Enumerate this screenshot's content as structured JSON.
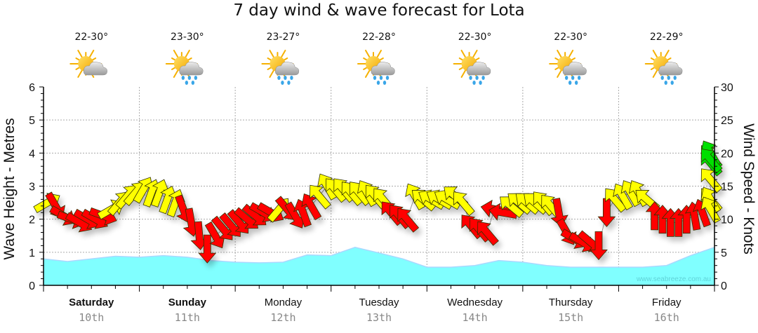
{
  "chart_data": {
    "type": "area",
    "title": "7 day wind & wave forecast for Lota",
    "ylabel_left": "Wave Height - Metres",
    "ylabel_right": "Wind Speed - Knots",
    "ylim_left": [
      0,
      6
    ],
    "ylim_right": [
      0,
      30
    ],
    "yticks_left": [
      "0",
      "1",
      "2",
      "3",
      "4",
      "5",
      "6"
    ],
    "yticks_right": [
      "0",
      "5",
      "10",
      "15",
      "20",
      "25",
      "30"
    ],
    "grid": true,
    "watermark": "www.seabreeze.com.au",
    "days": [
      {
        "name": "Saturday",
        "date": "10th",
        "temp": "22-30°",
        "icon": "partly-cloudy-icon",
        "bold": true
      },
      {
        "name": "Sunday",
        "date": "11th",
        "temp": "23-30°",
        "icon": "partly-cloudy-rain-icon",
        "bold": true
      },
      {
        "name": "Monday",
        "date": "12th",
        "temp": "23-27°",
        "icon": "partly-cloudy-rain-icon",
        "bold": false
      },
      {
        "name": "Tuesday",
        "date": "13th",
        "temp": "22-28°",
        "icon": "partly-cloudy-rain-icon",
        "bold": false
      },
      {
        "name": "Wednesday",
        "date": "14th",
        "temp": "22-30°",
        "icon": "partly-cloudy-rain-icon",
        "bold": false
      },
      {
        "name": "Thursday",
        "date": "15th",
        "temp": "22-30°",
        "icon": "partly-cloudy-rain-icon",
        "bold": false
      },
      {
        "name": "Friday",
        "date": "16th",
        "temp": "22-29°",
        "icon": "partly-cloudy-rain-icon",
        "bold": false
      }
    ],
    "wave_series": {
      "name": "Wave Height (m)",
      "color": "#80ffff",
      "hours": [
        0,
        6,
        12,
        18,
        24,
        30,
        36,
        42,
        48,
        54,
        60,
        66,
        72,
        78,
        84,
        90,
        96,
        102,
        108,
        114,
        120,
        126,
        132,
        138,
        144,
        150,
        156,
        162,
        168
      ],
      "values": [
        0.8,
        0.72,
        0.8,
        0.88,
        0.85,
        0.9,
        0.85,
        0.75,
        0.7,
        0.68,
        0.7,
        0.92,
        0.9,
        1.15,
        0.98,
        0.8,
        0.55,
        0.55,
        0.6,
        0.75,
        0.7,
        0.6,
        0.55,
        0.55,
        0.55,
        0.55,
        0.6,
        0.9,
        1.15
      ]
    },
    "wind_series": {
      "name": "Wind Speed (knots)",
      "color_scale": {
        "light": "#ffff00",
        "moderate": "#ff0000",
        "strong": "#00e000"
      },
      "points": [
        {
          "h": 1,
          "kt": 12.5,
          "dir": 240,
          "c": "light"
        },
        {
          "h": 3,
          "kt": 12.0,
          "dir": 330,
          "c": "moderate"
        },
        {
          "h": 5,
          "kt": 10.5,
          "dir": 300,
          "c": "moderate"
        },
        {
          "h": 7,
          "kt": 10.0,
          "dir": 290,
          "c": "moderate"
        },
        {
          "h": 9,
          "kt": 9.5,
          "dir": 300,
          "c": "moderate"
        },
        {
          "h": 11,
          "kt": 10.0,
          "dir": 300,
          "c": "moderate"
        },
        {
          "h": 13,
          "kt": 10.0,
          "dir": 300,
          "c": "moderate"
        },
        {
          "h": 15,
          "kt": 10.5,
          "dir": 290,
          "c": "moderate"
        },
        {
          "h": 17,
          "kt": 11.5,
          "dir": 240,
          "c": "light"
        },
        {
          "h": 19,
          "kt": 12.5,
          "dir": 220,
          "c": "light"
        },
        {
          "h": 21,
          "kt": 13.5,
          "dir": 220,
          "c": "light"
        },
        {
          "h": 23,
          "kt": 14.0,
          "dir": 220,
          "c": "light"
        },
        {
          "h": 25,
          "kt": 14.5,
          "dir": 210,
          "c": "light"
        },
        {
          "h": 27,
          "kt": 14.0,
          "dir": 200,
          "c": "light"
        },
        {
          "h": 29,
          "kt": 14.0,
          "dir": 200,
          "c": "light"
        },
        {
          "h": 31,
          "kt": 13.0,
          "dir": 200,
          "c": "light"
        },
        {
          "h": 33,
          "kt": 12.5,
          "dir": 200,
          "c": "light"
        },
        {
          "h": 35,
          "kt": 11.5,
          "dir": 340,
          "c": "moderate"
        },
        {
          "h": 37,
          "kt": 9.5,
          "dir": 350,
          "c": "moderate"
        },
        {
          "h": 39,
          "kt": 7.5,
          "dir": 355,
          "c": "moderate"
        },
        {
          "h": 41,
          "kt": 5.5,
          "dir": 360,
          "c": "moderate"
        },
        {
          "h": 43,
          "kt": 7.5,
          "dir": 330,
          "c": "moderate"
        },
        {
          "h": 45,
          "kt": 8.5,
          "dir": 320,
          "c": "moderate"
        },
        {
          "h": 47,
          "kt": 9.0,
          "dir": 320,
          "c": "moderate"
        },
        {
          "h": 49,
          "kt": 9.5,
          "dir": 320,
          "c": "moderate"
        },
        {
          "h": 51,
          "kt": 10.0,
          "dir": 310,
          "c": "moderate"
        },
        {
          "h": 53,
          "kt": 10.5,
          "dir": 310,
          "c": "moderate"
        },
        {
          "h": 55,
          "kt": 11.0,
          "dir": 300,
          "c": "moderate"
        },
        {
          "h": 57,
          "kt": 11.0,
          "dir": 300,
          "c": "moderate"
        },
        {
          "h": 59,
          "kt": 11.5,
          "dir": 220,
          "c": "light"
        },
        {
          "h": 61,
          "kt": 11.5,
          "dir": 320,
          "c": "moderate"
        },
        {
          "h": 63,
          "kt": 10.5,
          "dir": 330,
          "c": "moderate"
        },
        {
          "h": 65,
          "kt": 11.0,
          "dir": 160,
          "c": "moderate"
        },
        {
          "h": 67,
          "kt": 12.0,
          "dir": 150,
          "c": "moderate"
        },
        {
          "h": 69,
          "kt": 13.5,
          "dir": 140,
          "c": "light"
        },
        {
          "h": 71,
          "kt": 15.0,
          "dir": 150,
          "c": "light"
        },
        {
          "h": 73,
          "kt": 14.5,
          "dir": 140,
          "c": "light"
        },
        {
          "h": 75,
          "kt": 14.5,
          "dir": 140,
          "c": "light"
        },
        {
          "h": 77,
          "kt": 14.0,
          "dir": 140,
          "c": "light"
        },
        {
          "h": 79,
          "kt": 14.0,
          "dir": 140,
          "c": "light"
        },
        {
          "h": 81,
          "kt": 14.0,
          "dir": 150,
          "c": "light"
        },
        {
          "h": 83,
          "kt": 13.5,
          "dir": 140,
          "c": "light"
        },
        {
          "h": 85,
          "kt": 13.0,
          "dir": 140,
          "c": "light"
        },
        {
          "h": 87,
          "kt": 11.0,
          "dir": 140,
          "c": "moderate"
        },
        {
          "h": 89,
          "kt": 10.5,
          "dir": 140,
          "c": "moderate"
        },
        {
          "h": 91,
          "kt": 10.0,
          "dir": 140,
          "c": "moderate"
        },
        {
          "h": 93,
          "kt": 13.5,
          "dir": 150,
          "c": "light"
        },
        {
          "h": 95,
          "kt": 13.0,
          "dir": 130,
          "c": "light"
        },
        {
          "h": 97,
          "kt": 13.0,
          "dir": 120,
          "c": "light"
        },
        {
          "h": 99,
          "kt": 13.0,
          "dir": 120,
          "c": "light"
        },
        {
          "h": 101,
          "kt": 13.0,
          "dir": 120,
          "c": "light"
        },
        {
          "h": 103,
          "kt": 13.5,
          "dir": 130,
          "c": "light"
        },
        {
          "h": 105,
          "kt": 12.5,
          "dir": 140,
          "c": "light"
        },
        {
          "h": 107,
          "kt": 9.0,
          "dir": 140,
          "c": "moderate"
        },
        {
          "h": 109,
          "kt": 8.5,
          "dir": 140,
          "c": "moderate"
        },
        {
          "h": 111,
          "kt": 8.0,
          "dir": 140,
          "c": "moderate"
        },
        {
          "h": 113,
          "kt": 11.5,
          "dir": 100,
          "c": "moderate"
        },
        {
          "h": 115,
          "kt": 11.0,
          "dir": 100,
          "c": "moderate"
        },
        {
          "h": 117,
          "kt": 12.0,
          "dir": 130,
          "c": "light"
        },
        {
          "h": 119,
          "kt": 12.5,
          "dir": 130,
          "c": "light"
        },
        {
          "h": 121,
          "kt": 12.5,
          "dir": 130,
          "c": "light"
        },
        {
          "h": 123,
          "kt": 12.5,
          "dir": 130,
          "c": "light"
        },
        {
          "h": 125,
          "kt": 12.5,
          "dir": 140,
          "c": "light"
        },
        {
          "h": 127,
          "kt": 12.0,
          "dir": 140,
          "c": "light"
        },
        {
          "h": 129,
          "kt": 11.0,
          "dir": 350,
          "c": "moderate"
        },
        {
          "h": 131,
          "kt": 8.0,
          "dir": 330,
          "c": "moderate"
        },
        {
          "h": 133,
          "kt": 7.0,
          "dir": 300,
          "c": "moderate"
        },
        {
          "h": 135,
          "kt": 6.5,
          "dir": 300,
          "c": "moderate"
        },
        {
          "h": 137,
          "kt": 6.5,
          "dir": 310,
          "c": "moderate"
        },
        {
          "h": 139,
          "kt": 6.0,
          "dir": 360,
          "c": "moderate"
        },
        {
          "h": 141,
          "kt": 11.0,
          "dir": 360,
          "c": "moderate"
        },
        {
          "h": 143,
          "kt": 13.0,
          "dir": 140,
          "c": "light"
        },
        {
          "h": 145,
          "kt": 13.5,
          "dir": 150,
          "c": "light"
        },
        {
          "h": 147,
          "kt": 14.0,
          "dir": 150,
          "c": "light"
        },
        {
          "h": 149,
          "kt": 14.0,
          "dir": 150,
          "c": "light"
        },
        {
          "h": 151,
          "kt": 13.0,
          "dir": 130,
          "c": "light"
        },
        {
          "h": 153,
          "kt": 10.5,
          "dir": 180,
          "c": "moderate"
        },
        {
          "h": 155,
          "kt": 10.0,
          "dir": 180,
          "c": "moderate"
        },
        {
          "h": 157,
          "kt": 9.5,
          "dir": 180,
          "c": "moderate"
        },
        {
          "h": 159,
          "kt": 9.5,
          "dir": 180,
          "c": "moderate"
        },
        {
          "h": 161,
          "kt": 10.0,
          "dir": 180,
          "c": "moderate"
        },
        {
          "h": 163,
          "kt": 10.5,
          "dir": 170,
          "c": "moderate"
        },
        {
          "h": 165,
          "kt": 11.0,
          "dir": 160,
          "c": "moderate"
        },
        {
          "h": 167,
          "kt": 13.0,
          "dir": 140,
          "c": "light"
        },
        {
          "h": 169,
          "kt": 18.5,
          "dir": 140,
          "c": "strong"
        },
        {
          "h": 171,
          "kt": 19.5,
          "dir": 140,
          "c": "strong"
        },
        {
          "h": 173,
          "kt": 20.0,
          "dir": 150,
          "c": "strong"
        },
        {
          "h": 175,
          "kt": 19.0,
          "dir": 140,
          "c": "strong"
        },
        {
          "h": 177,
          "kt": 16.0,
          "dir": 140,
          "c": "light"
        },
        {
          "h": 179,
          "kt": 13.0,
          "dir": 150,
          "c": "light"
        },
        {
          "h": 181,
          "kt": 11.5,
          "dir": 150,
          "c": "light"
        }
      ]
    }
  }
}
